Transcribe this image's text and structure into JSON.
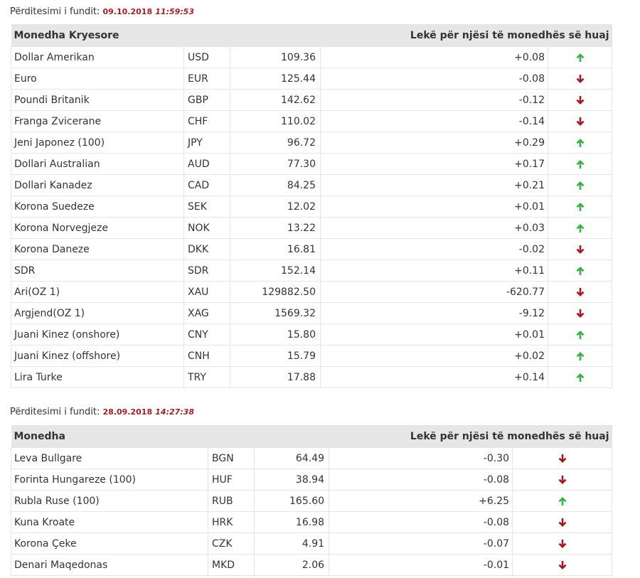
{
  "colors": {
    "up": "#3cb046",
    "down": "#a11a26",
    "accent": "#a0202a"
  },
  "update1": {
    "label": "Përditesimi i fundit:",
    "date": "09.10.2018",
    "time": "11:59:53"
  },
  "table1": {
    "header": {
      "left": "Monedha Kryesore",
      "right": "Lekë për njësi të monedhës së huaj"
    },
    "rows": [
      {
        "name": "Dollar Amerikan",
        "code": "USD",
        "rate": "109.36",
        "change": "+0.08",
        "direction": "up"
      },
      {
        "name": "Euro",
        "code": "EUR",
        "rate": "125.44",
        "change": "-0.08",
        "direction": "down"
      },
      {
        "name": "Poundi Britanik",
        "code": "GBP",
        "rate": "142.62",
        "change": "-0.12",
        "direction": "down"
      },
      {
        "name": "Franga Zvicerane",
        "code": "CHF",
        "rate": "110.02",
        "change": "-0.14",
        "direction": "down"
      },
      {
        "name": "Jeni Japonez (100)",
        "code": "JPY",
        "rate": "96.72",
        "change": "+0.29",
        "direction": "up"
      },
      {
        "name": "Dollari Australian",
        "code": "AUD",
        "rate": "77.30",
        "change": "+0.17",
        "direction": "up"
      },
      {
        "name": "Dollari Kanadez",
        "code": "CAD",
        "rate": "84.25",
        "change": "+0.21",
        "direction": "up"
      },
      {
        "name": "Korona Suedeze",
        "code": "SEK",
        "rate": "12.02",
        "change": "+0.01",
        "direction": "up"
      },
      {
        "name": "Korona Norvegjeze",
        "code": "NOK",
        "rate": "13.22",
        "change": "+0.03",
        "direction": "up"
      },
      {
        "name": "Korona Daneze",
        "code": "DKK",
        "rate": "16.81",
        "change": "-0.02",
        "direction": "down"
      },
      {
        "name": "SDR",
        "code": "SDR",
        "rate": "152.14",
        "change": "+0.11",
        "direction": "up"
      },
      {
        "name": "Ari(OZ 1)",
        "code": "XAU",
        "rate": "129882.50",
        "change": "-620.77",
        "direction": "down"
      },
      {
        "name": "Argjend(OZ 1)",
        "code": "XAG",
        "rate": "1569.32",
        "change": "-9.12",
        "direction": "down"
      },
      {
        "name": "Juani Kinez (onshore)",
        "code": "CNY",
        "rate": "15.80",
        "change": "+0.01",
        "direction": "up"
      },
      {
        "name": "Juani Kinez (offshore)",
        "code": "CNH",
        "rate": "15.79",
        "change": "+0.02",
        "direction": "up"
      },
      {
        "name": "Lira Turke",
        "code": "TRY",
        "rate": "17.88",
        "change": "+0.14",
        "direction": "up"
      }
    ]
  },
  "update2": {
    "label": "Përditesimi i fundit:",
    "date": "28.09.2018",
    "time": "14:27:38"
  },
  "table2": {
    "header": {
      "left": "Monedha",
      "right": "Lekë për njësi të monedhës së huaj"
    },
    "rows": [
      {
        "name": "Leva Bullgare",
        "code": "BGN",
        "rate": "64.49",
        "change": "-0.30",
        "direction": "down"
      },
      {
        "name": "Forinta Hungareze (100)",
        "code": "HUF",
        "rate": "38.94",
        "change": "-0.08",
        "direction": "down"
      },
      {
        "name": "Rubla Ruse (100)",
        "code": "RUB",
        "rate": "165.60",
        "change": "+6.25",
        "direction": "up"
      },
      {
        "name": "Kuna Kroate",
        "code": "HRK",
        "rate": "16.98",
        "change": "-0.08",
        "direction": "down"
      },
      {
        "name": "Korona Çeke",
        "code": "CZK",
        "rate": "4.91",
        "change": "-0.07",
        "direction": "down"
      },
      {
        "name": "Denari Maqedonas",
        "code": "MKD",
        "rate": "2.06",
        "change": "-0.01",
        "direction": "down"
      }
    ]
  }
}
